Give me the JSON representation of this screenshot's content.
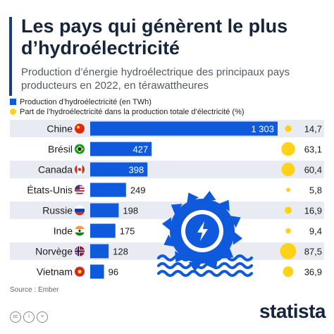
{
  "header": {
    "title": "Les pays qui génèrent le plus d’hydroélectricité",
    "subtitle": "Production d’énergie hydroélectrique des principaux pays producteurs en 2022, en térawattheures"
  },
  "legend": {
    "production_label": "Production d’hydroélectricité (en TWh)",
    "share_label": "Part de l’hydroélectricité dans la production totale d’électricité (%)"
  },
  "source": "Source : Ember",
  "brand": "statista",
  "colors": {
    "bar": "#0f5adc",
    "dot": "#ffd21a",
    "band": "#e8ecf2",
    "text_dark": "#16243c"
  },
  "chart_data": {
    "type": "bar",
    "orientation": "horizontal",
    "categories": [
      "Chine",
      "Brésil",
      "Canada",
      "États-Unis",
      "Russie",
      "Inde",
      "Norvège",
      "Vietnam"
    ],
    "value_labels": [
      "1 303",
      "427",
      "398",
      "249",
      "198",
      "175",
      "128",
      "96"
    ],
    "share_labels": [
      "14,7",
      "63,1",
      "60,4",
      "5,8",
      "16,9",
      "9,4",
      "87,5",
      "36,9"
    ],
    "series": [
      {
        "name": "Production d’hydroélectricité (en TWh)",
        "values": [
          1303,
          427,
          398,
          249,
          198,
          175,
          128,
          96
        ]
      },
      {
        "name": "Part de l’hydroélectricité dans la production totale d’électricité (%)",
        "values": [
          14.7,
          63.1,
          60.4,
          5.8,
          16.9,
          9.4,
          87.5,
          36.9
        ]
      }
    ],
    "flags": [
      "china-flag",
      "brazil-flag",
      "canada-flag",
      "usa-flag",
      "russia-flag",
      "india-flag",
      "norway-flag",
      "vietnam-flag"
    ],
    "xlim": [
      0,
      1303
    ],
    "grid": false,
    "legend_position": "top-left",
    "decoration": "hydro-turbine-icon"
  }
}
